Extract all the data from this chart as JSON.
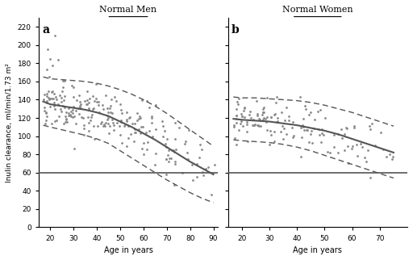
{
  "title_a": "Normal Men",
  "title_b": "Normal Women",
  "label_a": "a",
  "label_b": "b",
  "ylabel": "Inulin clearance, ml/min/1.73 m²",
  "xlabel": "Age in years",
  "ylim": [
    0,
    230
  ],
  "yticks": [
    0,
    20,
    40,
    60,
    80,
    100,
    120,
    140,
    160,
    180,
    200,
    220
  ],
  "xlim_a": [
    15,
    92
  ],
  "xlim_b": [
    15,
    80
  ],
  "xticks_a": [
    20,
    30,
    40,
    50,
    60,
    70,
    80,
    90
  ],
  "xticks_b": [
    20,
    30,
    40,
    50,
    60,
    70
  ],
  "hline_y": 60,
  "curve_color": "#555555",
  "scatter_color": "#888888",
  "bg_color": "#ffffff",
  "men_mean_x": [
    17,
    20,
    25,
    30,
    35,
    40,
    45,
    50,
    55,
    60,
    65,
    70,
    75,
    80,
    85,
    90
  ],
  "men_mean_y": [
    138,
    135,
    133,
    131,
    129,
    126,
    122,
    116,
    110,
    103,
    96,
    88,
    80,
    72,
    65,
    58
  ],
  "men_upper_x": [
    17,
    20,
    25,
    30,
    35,
    40,
    45,
    50,
    55,
    60,
    65,
    70,
    75,
    80,
    85,
    90
  ],
  "men_upper_y": [
    165,
    163,
    162,
    161,
    160,
    158,
    155,
    151,
    146,
    140,
    133,
    125,
    116,
    107,
    98,
    89
  ],
  "men_lower_x": [
    17,
    20,
    25,
    30,
    35,
    40,
    45,
    50,
    55,
    60,
    65,
    70,
    75,
    80,
    85,
    90
  ],
  "men_lower_y": [
    112,
    110,
    107,
    104,
    101,
    97,
    92,
    84,
    76,
    68,
    60,
    52,
    45,
    38,
    32,
    27
  ],
  "women_mean_x": [
    17,
    20,
    25,
    30,
    35,
    40,
    45,
    50,
    55,
    60,
    65,
    70,
    75
  ],
  "women_mean_y": [
    119,
    118,
    117,
    116,
    114,
    112,
    109,
    106,
    102,
    97,
    92,
    87,
    82
  ],
  "women_upper_x": [
    17,
    20,
    25,
    30,
    35,
    40,
    45,
    50,
    55,
    60,
    65,
    70,
    75
  ],
  "women_upper_y": [
    143,
    142,
    142,
    141,
    140,
    139,
    137,
    134,
    130,
    126,
    121,
    116,
    111
  ],
  "women_lower_x": [
    17,
    20,
    25,
    30,
    35,
    40,
    45,
    50,
    55,
    60,
    65,
    70,
    75
  ],
  "women_lower_y": [
    96,
    95,
    94,
    93,
    91,
    88,
    84,
    79,
    74,
    69,
    64,
    59,
    54
  ]
}
